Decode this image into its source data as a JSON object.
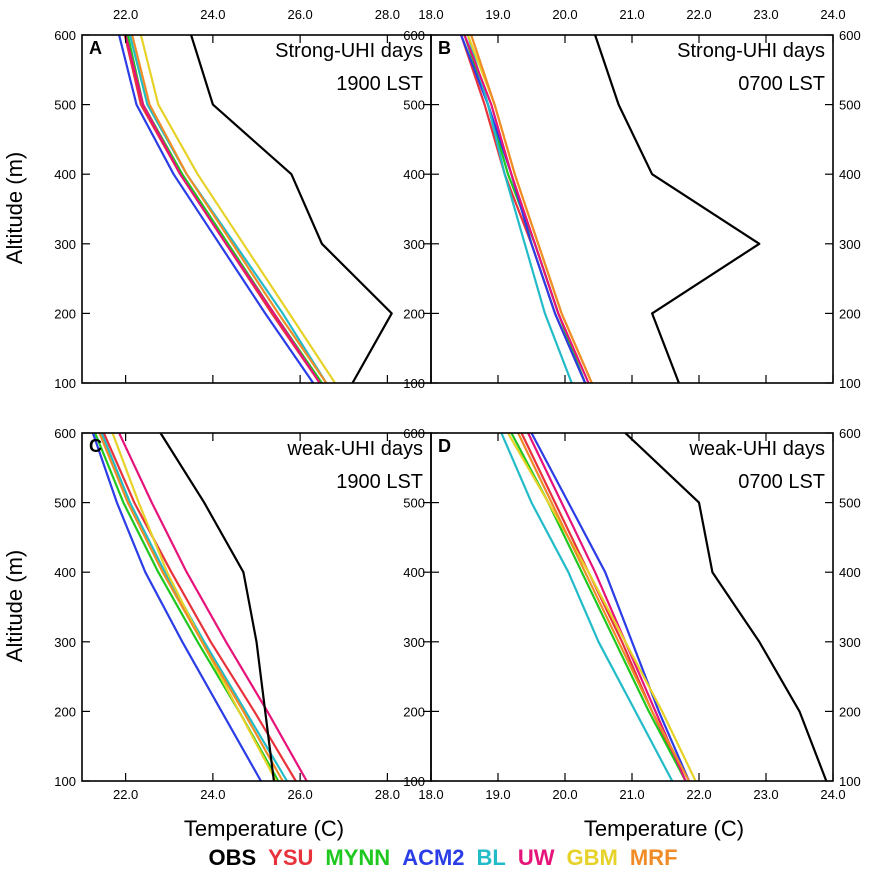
{
  "chart_data": {
    "type": "line",
    "altitudes": [
      100,
      200,
      300,
      400,
      500,
      600
    ],
    "y_ticks": [
      100,
      200,
      300,
      400,
      500,
      600
    ],
    "ylabel": "Altitude (m)",
    "xlabel": "Temperature (C)",
    "legend": [
      {
        "name": "OBS",
        "color": "#000000"
      },
      {
        "name": "YSU",
        "color": "#e8323c"
      },
      {
        "name": "MYNN",
        "color": "#1ec81e"
      },
      {
        "name": "ACM2",
        "color": "#2b3de6"
      },
      {
        "name": "BL",
        "color": "#22bcc8"
      },
      {
        "name": "UW",
        "color": "#e6147a"
      },
      {
        "name": "GBM",
        "color": "#e6d228"
      },
      {
        "name": "MRF",
        "color": "#f08c28"
      }
    ],
    "panels": [
      {
        "id": "A",
        "title1": "Strong-UHI days",
        "title2": "1900 LST",
        "xlim": [
          21.0,
          29.0
        ],
        "ylim": [
          100,
          600
        ],
        "x_ticks": [
          22.0,
          24.0,
          26.0,
          28.0
        ],
        "x_tick_labels": [
          "22.0",
          "24.0",
          "26.0",
          "28.0"
        ],
        "series": [
          {
            "name": "OBS",
            "values": [
              27.2,
              28.1,
              26.5,
              25.8,
              24.0,
              23.5
            ]
          },
          {
            "name": "YSU",
            "values": [
              26.45,
              25.35,
              24.3,
              23.25,
              22.35,
              21.98
            ]
          },
          {
            "name": "MYNN",
            "values": [
              26.5,
              25.4,
              24.35,
              23.3,
              22.4,
              22.05
            ]
          },
          {
            "name": "ACM2",
            "values": [
              26.3,
              25.2,
              24.15,
              23.1,
              22.25,
              21.85
            ]
          },
          {
            "name": "BL",
            "values": [
              26.6,
              25.6,
              24.5,
              23.4,
              22.5,
              22.1
            ]
          },
          {
            "name": "UW",
            "values": [
              26.45,
              25.4,
              24.3,
              23.25,
              22.4,
              22.0
            ]
          },
          {
            "name": "GBM",
            "values": [
              26.8,
              25.75,
              24.7,
              23.65,
              22.75,
              22.35
            ]
          },
          {
            "name": "MRF",
            "values": [
              26.6,
              25.5,
              24.45,
              23.4,
              22.55,
              22.15
            ]
          }
        ]
      },
      {
        "id": "B",
        "title1": "Strong-UHI days",
        "title2": "0700 LST",
        "xlim": [
          18.0,
          24.0
        ],
        "ylim": [
          100,
          600
        ],
        "x_ticks": [
          18.0,
          19.0,
          20.0,
          21.0,
          22.0,
          23.0,
          24.0
        ],
        "x_tick_labels": [
          "18.0",
          "19.0",
          "20.0",
          "21.0",
          "22.0",
          "23.0",
          "24.0"
        ],
        "series": [
          {
            "name": "OBS",
            "values": [
              21.7,
              21.3,
              22.9,
              21.3,
              20.8,
              20.45
            ]
          },
          {
            "name": "YSU",
            "values": [
              20.3,
              19.85,
              19.5,
              19.1,
              18.8,
              18.45
            ]
          },
          {
            "name": "MYNN",
            "values": [
              20.3,
              19.9,
              19.55,
              19.15,
              18.85,
              18.5
            ]
          },
          {
            "name": "ACM2",
            "values": [
              20.3,
              19.85,
              19.5,
              19.2,
              18.85,
              18.45
            ]
          },
          {
            "name": "BL",
            "values": [
              20.1,
              19.7,
              19.4,
              19.1,
              18.85,
              18.55
            ]
          },
          {
            "name": "UW",
            "values": [
              20.35,
              19.9,
              19.55,
              19.2,
              18.9,
              18.5
            ]
          },
          {
            "name": "GBM",
            "values": [
              20.4,
              19.95,
              19.6,
              19.25,
              18.95,
              18.55
            ]
          },
          {
            "name": "MRF",
            "values": [
              20.4,
              19.95,
              19.6,
              19.25,
              18.95,
              18.6
            ]
          }
        ]
      },
      {
        "id": "C",
        "title1": "weak-UHI days",
        "title2": "1900 LST",
        "xlim": [
          21.0,
          29.0
        ],
        "ylim": [
          100,
          600
        ],
        "x_ticks": [
          22.0,
          24.0,
          26.0,
          28.0
        ],
        "x_tick_labels": [
          "22.0",
          "24.0",
          "26.0",
          "28.0"
        ],
        "series": [
          {
            "name": "OBS",
            "values": [
              25.4,
              25.2,
              25.0,
              24.7,
              23.8,
              22.8
            ]
          },
          {
            "name": "YSU",
            "values": [
              25.9,
              24.95,
              23.95,
              23.05,
              22.2,
              21.5
            ]
          },
          {
            "name": "MYNN",
            "values": [
              25.5,
              24.6,
              23.65,
              22.75,
              21.95,
              21.3
            ]
          },
          {
            "name": "ACM2",
            "values": [
              25.1,
              24.2,
              23.3,
              22.45,
              21.8,
              21.25
            ]
          },
          {
            "name": "BL",
            "values": [
              25.7,
              24.75,
              23.8,
              22.9,
              22.1,
              21.45
            ]
          },
          {
            "name": "UW",
            "values": [
              26.15,
              25.25,
              24.3,
              23.4,
              22.6,
              21.85
            ]
          },
          {
            "name": "GBM",
            "values": [
              25.45,
              24.6,
              23.75,
              22.95,
              22.3,
              21.7
            ]
          },
          {
            "name": "MRF",
            "values": [
              25.6,
              24.7,
              23.75,
              22.85,
              22.05,
              21.4
            ]
          }
        ]
      },
      {
        "id": "D",
        "title1": "weak-UHI days",
        "title2": "0700 LST",
        "xlim": [
          18.0,
          24.0
        ],
        "ylim": [
          100,
          600
        ],
        "x_ticks": [
          18.0,
          19.0,
          20.0,
          21.0,
          22.0,
          23.0,
          24.0
        ],
        "x_tick_labels": [
          "18.0",
          "19.0",
          "20.0",
          "21.0",
          "22.0",
          "23.0",
          "24.0"
        ],
        "series": [
          {
            "name": "OBS",
            "values": [
              23.9,
              23.5,
              22.9,
              22.2,
              22.0,
              20.9
            ]
          },
          {
            "name": "YSU",
            "values": [
              21.8,
              21.3,
              20.85,
              20.35,
              19.85,
              19.35
            ]
          },
          {
            "name": "MYNN",
            "values": [
              21.8,
              21.25,
              20.75,
              20.25,
              19.75,
              19.2
            ]
          },
          {
            "name": "ACM2",
            "values": [
              21.85,
              21.4,
              21.0,
              20.6,
              20.05,
              19.5
            ]
          },
          {
            "name": "BL",
            "values": [
              21.6,
              21.05,
              20.5,
              20.05,
              19.5,
              19.05
            ]
          },
          {
            "name": "UW",
            "values": [
              21.8,
              21.35,
              20.9,
              20.45,
              19.95,
              19.45
            ]
          },
          {
            "name": "GBM",
            "values": [
              21.95,
              21.45,
              20.9,
              20.35,
              19.75,
              19.15
            ]
          },
          {
            "name": "MRF",
            "values": [
              21.85,
              21.3,
              20.8,
              20.3,
              19.8,
              19.3
            ]
          }
        ]
      }
    ]
  }
}
